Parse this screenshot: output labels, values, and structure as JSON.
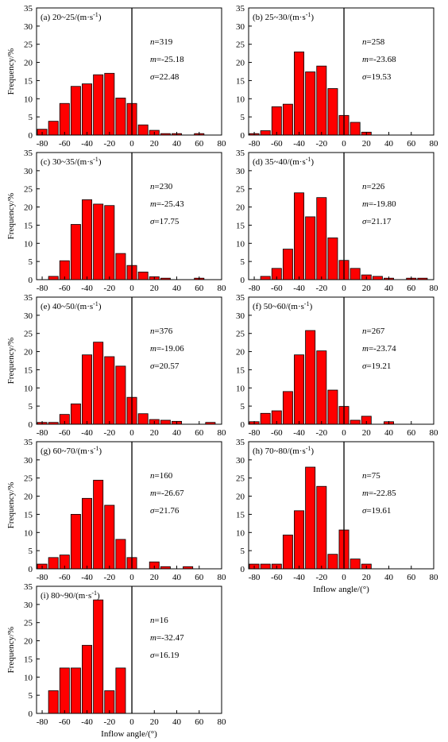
{
  "chart_data": [
    {
      "type": "bar",
      "panel": "(a)",
      "speed_range": "20~25/(m·s",
      "unit_exp": "-1",
      "unit_close": ")",
      "stats": {
        "n": "319",
        "m": "-25.18",
        "sigma": "22.48"
      },
      "xlabel": "",
      "ylabel": "Frequency/%",
      "xlim": [
        -85,
        80
      ],
      "ylim": [
        0,
        35
      ],
      "x": [
        -80,
        -70,
        -60,
        -50,
        -40,
        -30,
        -20,
        -10,
        0,
        10,
        20,
        30,
        40,
        50,
        60,
        70
      ],
      "values": [
        1.6,
        3.8,
        8.7,
        13.4,
        14.1,
        16.6,
        17.0,
        10.2,
        8.7,
        2.8,
        1.3,
        0.4,
        0.4,
        0,
        0.4,
        0
      ]
    },
    {
      "type": "bar",
      "panel": "(b)",
      "speed_range": "25~30/(m·s",
      "unit_exp": "-1",
      "unit_close": ")",
      "stats": {
        "n": "258",
        "m": "-23.68",
        "sigma": "19.53"
      },
      "xlabel": "",
      "ylabel": "",
      "xlim": [
        -85,
        80
      ],
      "ylim": [
        0,
        35
      ],
      "x": [
        -80,
        -70,
        -60,
        -50,
        -40,
        -30,
        -20,
        -10,
        0,
        10,
        20,
        30,
        40,
        50,
        60,
        70
      ],
      "values": [
        0.4,
        1.2,
        7.8,
        8.5,
        22.9,
        17.4,
        19.0,
        12.8,
        5.4,
        3.5,
        0.8,
        0,
        0,
        0,
        0,
        0
      ]
    },
    {
      "type": "bar",
      "panel": "(c)",
      "speed_range": "30~35/(m·s",
      "unit_exp": "-1",
      "unit_close": ")",
      "stats": {
        "n": "230",
        "m": "-25.43",
        "sigma": "17.75"
      },
      "xlabel": "",
      "ylabel": "Frequency/%",
      "xlim": [
        -85,
        80
      ],
      "ylim": [
        0,
        35
      ],
      "x": [
        -80,
        -70,
        -60,
        -50,
        -40,
        -30,
        -20,
        -10,
        0,
        10,
        20,
        30,
        40,
        50,
        60,
        70
      ],
      "values": [
        0,
        0.9,
        5.2,
        15.2,
        22.0,
        20.8,
        20.4,
        7.2,
        3.9,
        2.1,
        0.8,
        0.4,
        0,
        0,
        0.4,
        0
      ]
    },
    {
      "type": "bar",
      "panel": "(d)",
      "speed_range": "35~40/(m·s",
      "unit_exp": "-1",
      "unit_close": ")",
      "stats": {
        "n": "226",
        "m": "-19.80",
        "sigma": "21.17"
      },
      "xlabel": "",
      "ylabel": "",
      "xlim": [
        -85,
        80
      ],
      "ylim": [
        0,
        35
      ],
      "x": [
        -80,
        -70,
        -60,
        -50,
        -40,
        -30,
        -20,
        -10,
        0,
        10,
        20,
        30,
        40,
        50,
        60,
        70
      ],
      "values": [
        0,
        0.9,
        3.1,
        8.4,
        23.9,
        17.3,
        22.6,
        11.5,
        5.3,
        3.1,
        1.3,
        0.9,
        0.4,
        0,
        0.4,
        0.4
      ]
    },
    {
      "type": "bar",
      "panel": "(e)",
      "speed_range": "40~50/(m·s",
      "unit_exp": "-1",
      "unit_close": ")",
      "stats": {
        "n": "376",
        "m": "-19.06",
        "sigma": "20.57"
      },
      "xlabel": "",
      "ylabel": "Frequency/%",
      "xlim": [
        -85,
        80
      ],
      "ylim": [
        0,
        35
      ],
      "x": [
        -80,
        -70,
        -60,
        -50,
        -40,
        -30,
        -20,
        -10,
        0,
        10,
        20,
        30,
        40,
        50,
        60,
        70
      ],
      "values": [
        0.5,
        0.5,
        2.7,
        5.6,
        19.1,
        22.6,
        18.6,
        16.0,
        7.4,
        2.9,
        1.3,
        1.1,
        0.8,
        0,
        0,
        0.5
      ]
    },
    {
      "type": "bar",
      "panel": "(f)",
      "speed_range": "50~60/(m·s",
      "unit_exp": "-1",
      "unit_close": ")",
      "stats": {
        "n": "267",
        "m": "-23.74",
        "sigma": "19.21"
      },
      "xlabel": "",
      "ylabel": "",
      "xlim": [
        -85,
        80
      ],
      "ylim": [
        0,
        35
      ],
      "x": [
        -80,
        -70,
        -60,
        -50,
        -40,
        -30,
        -20,
        -10,
        0,
        10,
        20,
        30,
        40,
        50,
        60,
        70
      ],
      "values": [
        0.7,
        3.0,
        3.7,
        9.0,
        19.1,
        25.8,
        20.2,
        9.4,
        4.9,
        1.1,
        2.2,
        0,
        0.7,
        0,
        0,
        0
      ]
    },
    {
      "type": "bar",
      "panel": "(g)",
      "speed_range": "60~70/(m·s",
      "unit_exp": "-1",
      "unit_close": ")",
      "stats": {
        "n": "160",
        "m": "-26.67",
        "sigma": "21.76"
      },
      "xlabel": "",
      "ylabel": "Frequency/%",
      "xlim": [
        -85,
        80
      ],
      "ylim": [
        0,
        35
      ],
      "x": [
        -80,
        -70,
        -60,
        -50,
        -40,
        -30,
        -20,
        -10,
        0,
        10,
        20,
        30,
        40,
        50,
        60,
        70
      ],
      "values": [
        1.3,
        3.1,
        3.8,
        15.0,
        19.4,
        24.4,
        17.5,
        8.1,
        3.1,
        0,
        1.9,
        0.6,
        0,
        0.6,
        0,
        0
      ]
    },
    {
      "type": "bar",
      "panel": "(h)",
      "speed_range": "70~80/(m·s",
      "unit_exp": "-1",
      "unit_close": ")",
      "stats": {
        "n": "75",
        "m": "-22.85",
        "sigma": "19.61"
      },
      "xlabel": "Inflow angle/(°)",
      "ylabel": "",
      "xlim": [
        -85,
        80
      ],
      "ylim": [
        0,
        35
      ],
      "x": [
        -80,
        -70,
        -60,
        -50,
        -40,
        -30,
        -20,
        -10,
        0,
        10,
        20,
        30,
        40,
        50,
        60,
        70
      ],
      "values": [
        1.3,
        1.3,
        1.3,
        9.3,
        16.0,
        28.0,
        22.7,
        4.0,
        10.7,
        2.7,
        1.3,
        0,
        0,
        0,
        0,
        0
      ]
    },
    {
      "type": "bar",
      "panel": "(i)",
      "speed_range": "80~90/(m·s",
      "unit_exp": "-1",
      "unit_close": ")",
      "stats": {
        "n": "16",
        "m": "-32.47",
        "sigma": "16.19"
      },
      "xlabel": "Inflow angle/(°)",
      "ylabel": "Frequency/%",
      "xlim": [
        -85,
        80
      ],
      "ylim": [
        0,
        35
      ],
      "x": [
        -80,
        -70,
        -60,
        -50,
        -40,
        -30,
        -20,
        -10,
        0,
        10,
        20,
        30,
        40,
        50,
        60,
        70
      ],
      "values": [
        0,
        6.25,
        12.5,
        12.5,
        18.75,
        31.25,
        6.25,
        12.5,
        0,
        0,
        0,
        0,
        0,
        0,
        0,
        0
      ]
    }
  ],
  "axis": {
    "xticks": [
      "-80",
      "-60",
      "-40",
      "-20",
      "0",
      "20",
      "40",
      "60",
      "80"
    ],
    "yticks": [
      "0",
      "5",
      "10",
      "15",
      "20",
      "25",
      "30",
      "35"
    ],
    "stat_labels": {
      "n": "n",
      "m": "m",
      "sigma": "σ",
      "eq": "="
    }
  },
  "colors": {
    "bar_fill": "#ff0000",
    "bar_stroke": "#000000",
    "zero_line": "#000000"
  }
}
